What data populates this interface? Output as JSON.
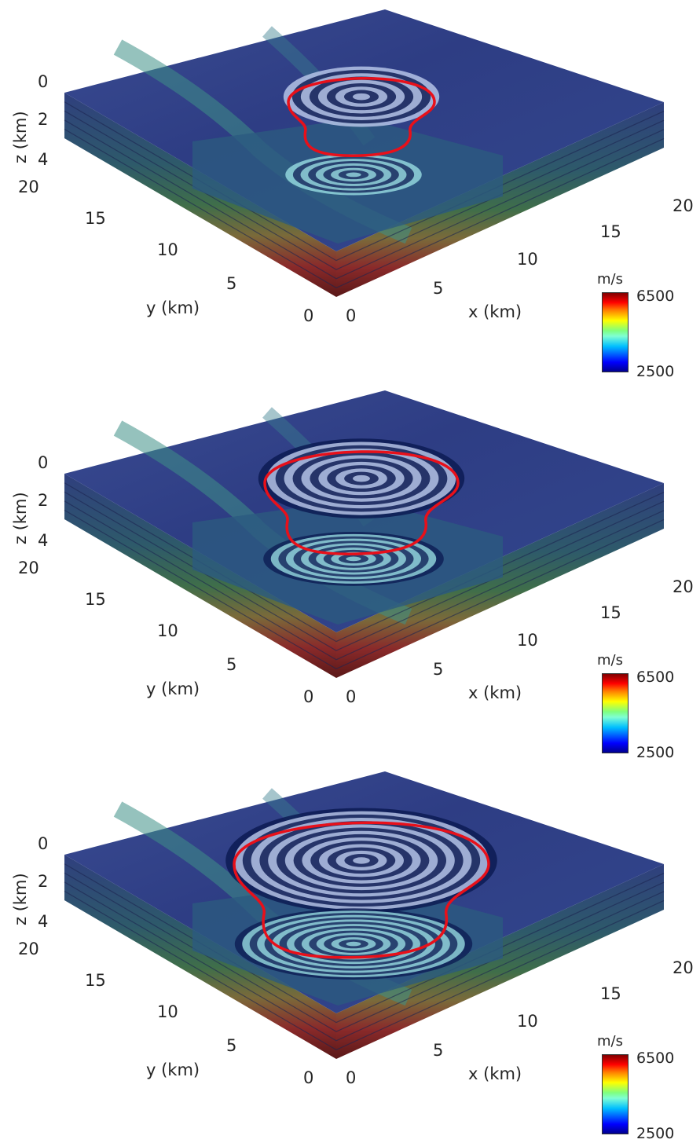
{
  "panels": [
    {
      "id": "a",
      "front_radius": 0.42,
      "back_radius": 0.52,
      "outline_scale": 0.62,
      "ring_count": 9
    },
    {
      "id": "b",
      "front_radius": 0.55,
      "back_radius": 0.68,
      "outline_scale": 0.82,
      "ring_count": 12
    },
    {
      "id": "c",
      "front_radius": 0.78,
      "back_radius": 0.95,
      "outline_scale": 1.08,
      "ring_count": 16
    }
  ],
  "axes": {
    "x_label": "x (km)",
    "y_label": "y (km)",
    "z_label": "z (km)",
    "x_ticks": [
      "0",
      "5",
      "10",
      "15",
      "20"
    ],
    "y_ticks": [
      "0",
      "5",
      "10",
      "15",
      "20"
    ],
    "z_ticks": [
      "0",
      "2",
      "4"
    ]
  },
  "colorbar": {
    "unit": "m/s",
    "max": "6500",
    "min": "2500"
  },
  "colors": {
    "top": "#2f3f86",
    "top_light": "#3a5a9a",
    "left_side": "#2a3a6e",
    "right_side": "#2a4270",
    "wavefront": "#e8101a",
    "ring_light": "#b9c8ea",
    "ring_dark": "#0b1a52"
  },
  "chart_data": {
    "type": "heatmap",
    "title": "",
    "xlabel": "x (km)",
    "ylabel": "y (km)",
    "zlabel": "z (km)",
    "xlim": [
      0,
      20
    ],
    "ylim": [
      0,
      20
    ],
    "zlim": [
      0,
      4
    ],
    "colorbar": {
      "unit": "m/s",
      "range": [
        2500,
        6500
      ],
      "colormap": "jet"
    },
    "panels": 3
  }
}
